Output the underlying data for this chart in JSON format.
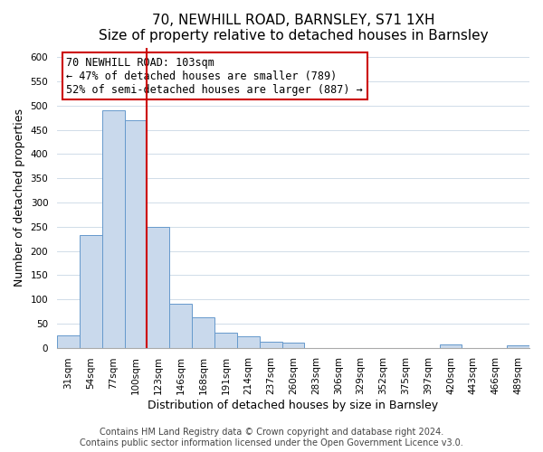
{
  "title": "70, NEWHILL ROAD, BARNSLEY, S71 1XH",
  "subtitle": "Size of property relative to detached houses in Barnsley",
  "xlabel": "Distribution of detached houses by size in Barnsley",
  "ylabel": "Number of detached properties",
  "bar_labels": [
    "31sqm",
    "54sqm",
    "77sqm",
    "100sqm",
    "123sqm",
    "146sqm",
    "168sqm",
    "191sqm",
    "214sqm",
    "237sqm",
    "260sqm",
    "283sqm",
    "306sqm",
    "329sqm",
    "352sqm",
    "375sqm",
    "397sqm",
    "420sqm",
    "443sqm",
    "466sqm",
    "489sqm"
  ],
  "bar_values": [
    25,
    233,
    490,
    470,
    250,
    90,
    63,
    31,
    23,
    13,
    10,
    0,
    0,
    0,
    0,
    0,
    0,
    7,
    0,
    0,
    5
  ],
  "bar_color": "#c9d9ec",
  "bar_edge_color": "#6699cc",
  "highlight_line_color": "#cc0000",
  "annotation_text": "70 NEWHILL ROAD: 103sqm\n← 47% of detached houses are smaller (789)\n52% of semi-detached houses are larger (887) →",
  "annotation_box_edge_color": "#cc0000",
  "ylim": [
    0,
    620
  ],
  "yticks": [
    0,
    50,
    100,
    150,
    200,
    250,
    300,
    350,
    400,
    450,
    500,
    550,
    600
  ],
  "footnote": "Contains HM Land Registry data © Crown copyright and database right 2024.\nContains public sector information licensed under the Open Government Licence v3.0.",
  "title_fontsize": 11,
  "label_fontsize": 9,
  "tick_fontsize": 7.5,
  "footnote_fontsize": 7,
  "grid_color": "#d0dce8"
}
